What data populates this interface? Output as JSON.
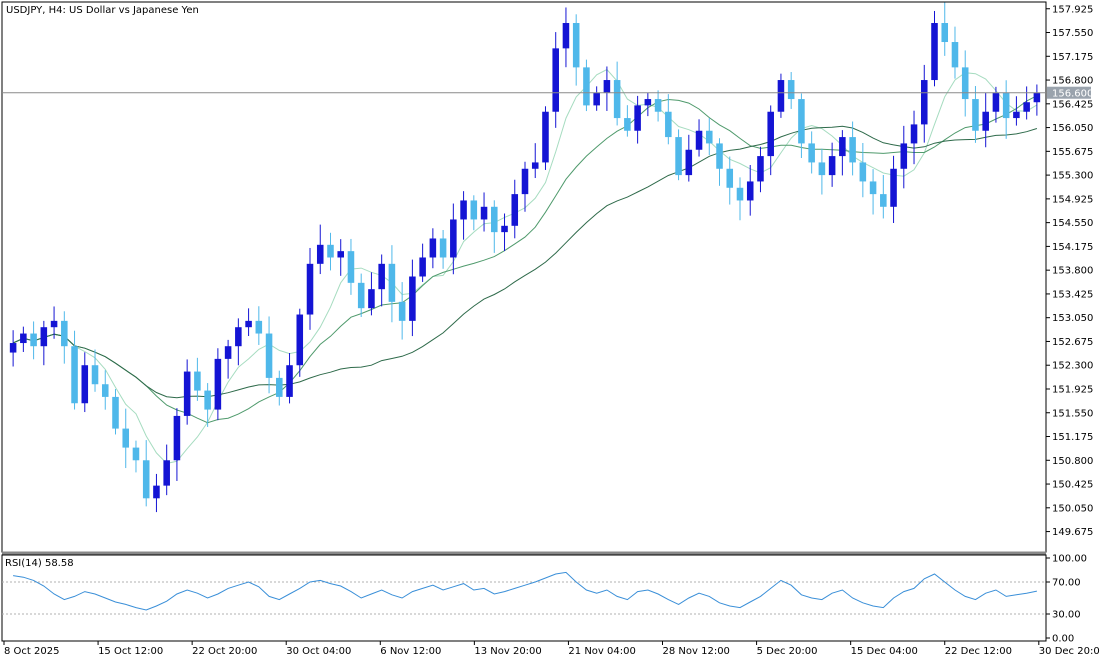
{
  "chart_data": {
    "type": "candlestick",
    "symbol": "USDJPY",
    "timeframe": "H4",
    "title": "USDJPY, H4:  US Dollar vs Japanese Yen",
    "current_price": "156.600",
    "colors": {
      "bull_candle": "#1414d4",
      "bear_candle": "#4fb8ea",
      "ma_fast": "#a6dcc0",
      "ma_mid": "#4f9a6c",
      "ma_slow": "#2e6a4a",
      "rsi_line": "#3a8fd8",
      "price_line": "#8a8a8a",
      "current_price_label_bg": "#9aa3ad"
    },
    "y_axis": {
      "min": 149.4,
      "max": 158.0,
      "ticks": [
        "157.925",
        "157.550",
        "157.175",
        "156.800",
        "156.425",
        "156.050",
        "155.675",
        "155.300",
        "154.925",
        "154.550",
        "154.175",
        "153.800",
        "153.425",
        "153.050",
        "152.675",
        "152.300",
        "151.925",
        "151.550",
        "151.175",
        "150.800",
        "150.425",
        "150.050",
        "149.675"
      ]
    },
    "x_axis_labels": [
      "8 Oct 2025",
      "15 Oct 12:00",
      "22 Oct 20:00",
      "30 Oct 04:00",
      "6 Nov 12:00",
      "13 Nov 20:00",
      "21 Nov 04:00",
      "28 Nov 12:00",
      "5 Dec 20:00",
      "15 Dec 04:00",
      "22 Dec 12:00",
      "30 Dec 20:00"
    ],
    "candle_closes": [
      152.65,
      152.8,
      152.6,
      152.9,
      153.0,
      152.6,
      151.7,
      152.3,
      152.0,
      151.8,
      151.3,
      151.0,
      150.8,
      150.2,
      150.4,
      150.8,
      151.5,
      152.2,
      151.9,
      151.6,
      152.4,
      152.6,
      152.9,
      153.0,
      152.8,
      152.1,
      151.8,
      152.3,
      153.1,
      153.9,
      154.2,
      154.0,
      154.1,
      153.6,
      153.2,
      153.5,
      153.9,
      153.3,
      153.0,
      153.7,
      154.0,
      154.3,
      154.0,
      154.6,
      154.9,
      154.6,
      154.8,
      154.4,
      154.5,
      155.0,
      155.4,
      155.5,
      156.3,
      157.3,
      157.7,
      157.0,
      156.4,
      156.6,
      156.8,
      156.2,
      156.0,
      156.4,
      156.5,
      156.3,
      155.9,
      155.3,
      155.7,
      156.0,
      155.8,
      155.4,
      155.1,
      154.9,
      155.2,
      155.6,
      156.3,
      156.8,
      156.5,
      155.8,
      155.5,
      155.3,
      155.6,
      155.9,
      155.5,
      155.2,
      155.0,
      154.8,
      155.4,
      155.8,
      156.1,
      156.8,
      157.7,
      157.4,
      157.0,
      156.5,
      156.0,
      156.3,
      156.6,
      156.2,
      156.3,
      156.45,
      156.6
    ]
  },
  "indicator": {
    "label": "RSI(14) 58.58",
    "name": "RSI(14)",
    "value": "58.58",
    "levels": [
      70,
      30
    ],
    "ticks": [
      "100.00",
      "70.00",
      "30.00",
      "0.00"
    ],
    "values": [
      78,
      76,
      72,
      65,
      55,
      48,
      52,
      58,
      55,
      50,
      45,
      42,
      38,
      35,
      40,
      46,
      55,
      60,
      56,
      50,
      55,
      62,
      66,
      70,
      64,
      52,
      48,
      55,
      62,
      70,
      72,
      68,
      65,
      58,
      50,
      55,
      60,
      54,
      50,
      58,
      62,
      66,
      60,
      64,
      68,
      60,
      62,
      55,
      58,
      62,
      66,
      70,
      75,
      80,
      82,
      70,
      60,
      56,
      60,
      52,
      48,
      58,
      60,
      55,
      48,
      42,
      50,
      56,
      52,
      44,
      40,
      38,
      45,
      52,
      62,
      72,
      66,
      54,
      50,
      48,
      56,
      60,
      50,
      44,
      40,
      38,
      50,
      58,
      62,
      74,
      80,
      70,
      60,
      52,
      48,
      56,
      60,
      52,
      54,
      56,
      58.58
    ]
  }
}
